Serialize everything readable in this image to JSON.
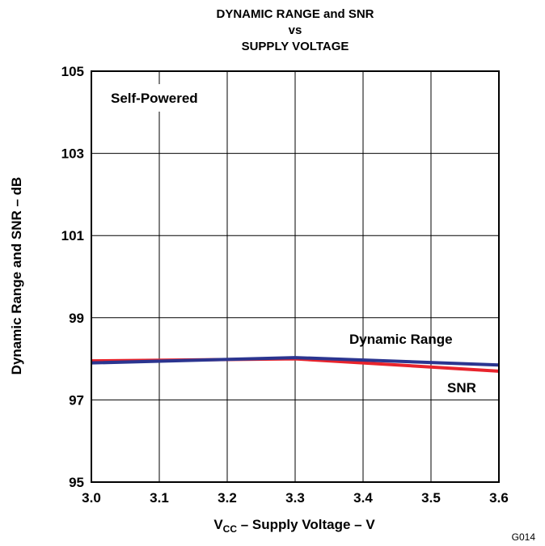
{
  "chart_data": {
    "type": "line",
    "title_lines": [
      "DYNAMIC RANGE and SNR",
      "vs",
      "SUPPLY VOLTAGE"
    ],
    "xlabel": {
      "prefix": "V",
      "subscript": "CC",
      "suffix": " – Supply Voltage – V"
    },
    "ylabel": "Dynamic Range and SNR – dB",
    "xlim": [
      3.0,
      3.6
    ],
    "ylim": [
      95,
      105
    ],
    "x_ticks": [
      "3.0",
      "3.1",
      "3.2",
      "3.3",
      "3.4",
      "3.5",
      "3.6"
    ],
    "y_ticks": [
      "95",
      "97",
      "99",
      "101",
      "103",
      "105"
    ],
    "grid": true,
    "series": [
      {
        "name": "SNR",
        "color": "#e8242c",
        "points": [
          [
            3.0,
            97.95
          ],
          [
            3.3,
            98.0
          ],
          [
            3.6,
            97.7
          ]
        ]
      },
      {
        "name": "Dynamic Range",
        "color": "#2b3590",
        "points": [
          [
            3.0,
            97.9
          ],
          [
            3.3,
            98.03
          ],
          [
            3.6,
            97.85
          ]
        ]
      }
    ],
    "annotations": {
      "condition": "Self-Powered",
      "dynamic_range_label": "Dynamic Range",
      "snr_label": "SNR"
    },
    "figure_id": "G014"
  }
}
